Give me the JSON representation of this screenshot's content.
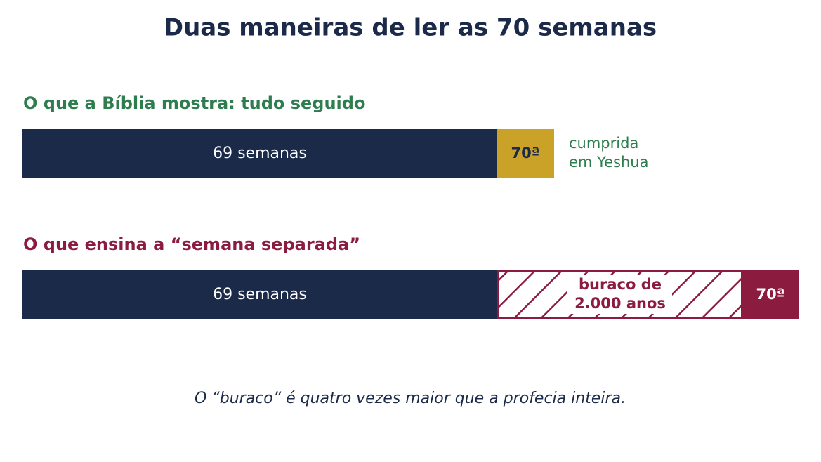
{
  "title": "Duas maneiras de ler as 70 semanas",
  "rows": [
    {
      "label": "O que a Bíblia mostra: tudo seguido",
      "segments": [
        {
          "text": "69 semanas"
        },
        {
          "text": "70ª"
        }
      ],
      "note": [
        "cumprida",
        "em Yeshua"
      ]
    },
    {
      "label": "O que ensina a “semana separada”",
      "segments": [
        {
          "text": "69 semanas"
        },
        {
          "text": [
            "buraco de",
            "2.000 anos"
          ]
        },
        {
          "text": "70ª"
        }
      ]
    }
  ],
  "footer": "O “buraco” é quatro vezes maior que a profecia inteira."
}
